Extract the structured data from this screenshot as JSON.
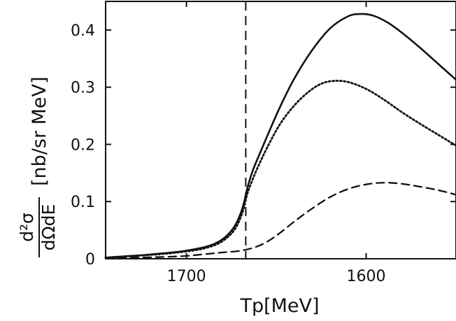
{
  "chart_data": {
    "type": "line",
    "x_axis": {
      "label": "Tp[MeV]",
      "range": [
        1745,
        1550
      ],
      "reversed": true,
      "ticks": [
        1700,
        1600
      ],
      "tick_labels": [
        "1700",
        "1600"
      ]
    },
    "y_axis": {
      "label_fraction_numerator": "d²σ",
      "label_fraction_denominator": "dΩdE",
      "label_units": "[nb/sr MeV]",
      "range": [
        0,
        0.45
      ],
      "ticks": [
        0,
        0.1,
        0.2,
        0.3,
        0.4
      ],
      "tick_labels": [
        "0",
        "0.1",
        "0.2",
        "0.3",
        "0.4"
      ]
    },
    "reference_line": {
      "style": "dashed",
      "x": 1667
    },
    "series": [
      {
        "style": "solid",
        "points": [
          [
            1745,
            0.002
          ],
          [
            1735,
            0.004
          ],
          [
            1725,
            0.006
          ],
          [
            1715,
            0.009
          ],
          [
            1705,
            0.012
          ],
          [
            1695,
            0.017
          ],
          [
            1688,
            0.022
          ],
          [
            1682,
            0.03
          ],
          [
            1677,
            0.042
          ],
          [
            1673,
            0.058
          ],
          [
            1670,
            0.078
          ],
          [
            1668,
            0.098
          ],
          [
            1666,
            0.125
          ],
          [
            1663,
            0.155
          ],
          [
            1660,
            0.178
          ],
          [
            1655,
            0.215
          ],
          [
            1648,
            0.265
          ],
          [
            1640,
            0.315
          ],
          [
            1630,
            0.365
          ],
          [
            1620,
            0.403
          ],
          [
            1610,
            0.424
          ],
          [
            1603,
            0.428
          ],
          [
            1596,
            0.425
          ],
          [
            1588,
            0.413
          ],
          [
            1580,
            0.395
          ],
          [
            1570,
            0.369
          ],
          [
            1560,
            0.341
          ],
          [
            1550,
            0.313
          ]
        ]
      },
      {
        "style": "dotted",
        "points": [
          [
            1745,
            0.002
          ],
          [
            1735,
            0.004
          ],
          [
            1725,
            0.006
          ],
          [
            1715,
            0.008
          ],
          [
            1705,
            0.011
          ],
          [
            1695,
            0.015
          ],
          [
            1688,
            0.02
          ],
          [
            1682,
            0.027
          ],
          [
            1677,
            0.038
          ],
          [
            1673,
            0.052
          ],
          [
            1670,
            0.071
          ],
          [
            1668,
            0.09
          ],
          [
            1666,
            0.115
          ],
          [
            1663,
            0.14
          ],
          [
            1660,
            0.162
          ],
          [
            1655,
            0.195
          ],
          [
            1648,
            0.235
          ],
          [
            1640,
            0.268
          ],
          [
            1632,
            0.292
          ],
          [
            1625,
            0.306
          ],
          [
            1618,
            0.311
          ],
          [
            1610,
            0.309
          ],
          [
            1600,
            0.297
          ],
          [
            1590,
            0.278
          ],
          [
            1580,
            0.256
          ],
          [
            1570,
            0.236
          ],
          [
            1560,
            0.217
          ],
          [
            1550,
            0.198
          ]
        ]
      },
      {
        "style": "dashed",
        "points": [
          [
            1745,
            0.001
          ],
          [
            1730,
            0.002
          ],
          [
            1715,
            0.003
          ],
          [
            1700,
            0.005
          ],
          [
            1690,
            0.008
          ],
          [
            1680,
            0.011
          ],
          [
            1670,
            0.014
          ],
          [
            1662,
            0.02
          ],
          [
            1655,
            0.03
          ],
          [
            1648,
            0.045
          ],
          [
            1640,
            0.065
          ],
          [
            1630,
            0.088
          ],
          [
            1620,
            0.108
          ],
          [
            1610,
            0.122
          ],
          [
            1600,
            0.13
          ],
          [
            1590,
            0.133
          ],
          [
            1580,
            0.131
          ],
          [
            1570,
            0.126
          ],
          [
            1560,
            0.12
          ],
          [
            1550,
            0.112
          ]
        ]
      }
    ]
  }
}
